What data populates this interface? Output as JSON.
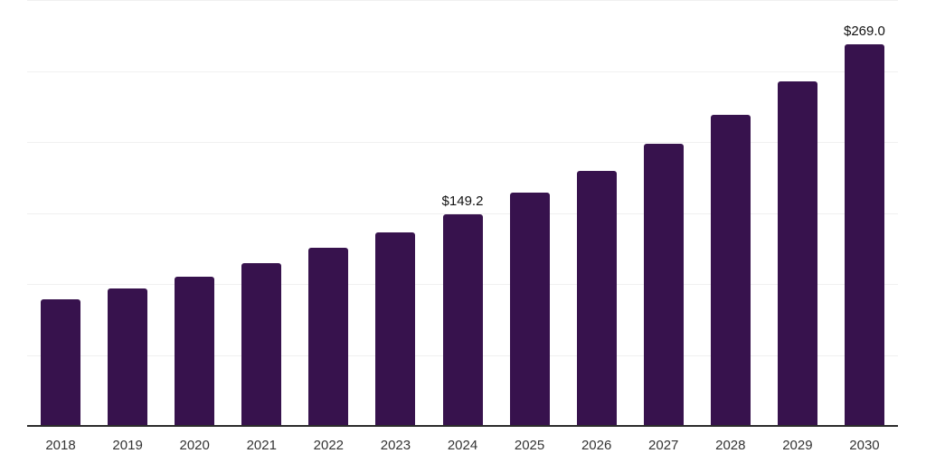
{
  "chart_data": {
    "type": "bar",
    "title": "",
    "xlabel": "",
    "ylabel": "",
    "legend": "none",
    "grid": "horizontal",
    "categories": [
      "2018",
      "2019",
      "2020",
      "2021",
      "2022",
      "2023",
      "2024",
      "2025",
      "2026",
      "2027",
      "2028",
      "2029",
      "2030"
    ],
    "values": [
      89.2,
      96.6,
      104.9,
      114.6,
      125.2,
      136.5,
      149.2,
      164.4,
      179.9,
      199.0,
      219.2,
      242.5,
      269.0
    ],
    "value_labels": {
      "2024": "$149.2",
      "2030": "$269.0"
    },
    "ylim": [
      0,
      300
    ],
    "gridline_step": 50,
    "y_axis_labels_visible": false
  },
  "styles": {
    "bar_color": "#37124d",
    "gridline_color": "#f0f0f0",
    "axis_line_color": "#2b2b2b",
    "tick_label_color": "#333333",
    "value_label_color": "#111111",
    "background": "#ffffff"
  }
}
